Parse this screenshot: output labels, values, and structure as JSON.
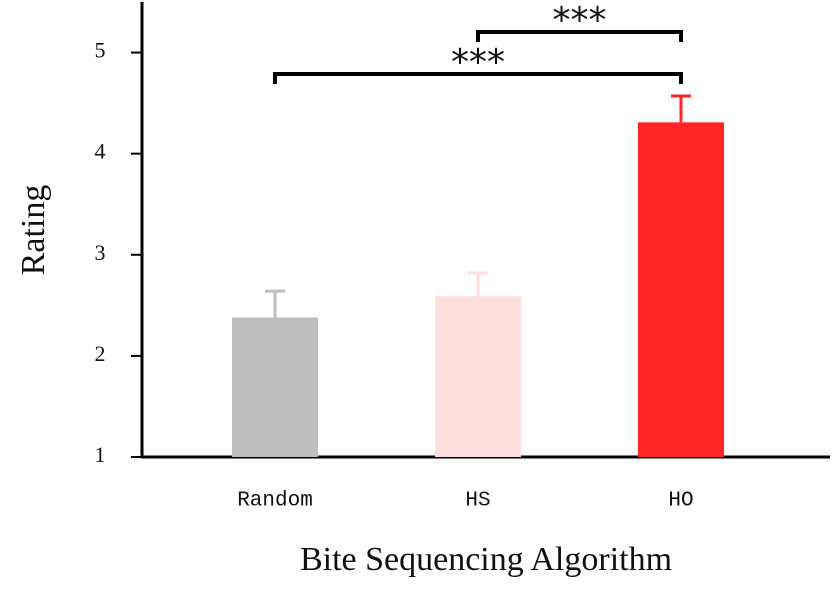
{
  "chart_data": {
    "type": "bar",
    "xlabel": "Bite Sequencing Algorithm",
    "ylabel": "Rating",
    "categories": [
      "Random",
      "HS",
      "HO"
    ],
    "values": [
      2.38,
      2.59,
      4.31
    ],
    "errors": [
      0.26,
      0.23,
      0.26
    ],
    "colors": [
      "#bebebe",
      "#ffe0e0",
      "#ff2525"
    ],
    "ylim": [
      1,
      5.5
    ],
    "yticks": [
      1,
      2,
      3,
      4,
      5
    ],
    "annotations": [
      {
        "label": "***"
      },
      {
        "label": "***"
      }
    ]
  }
}
